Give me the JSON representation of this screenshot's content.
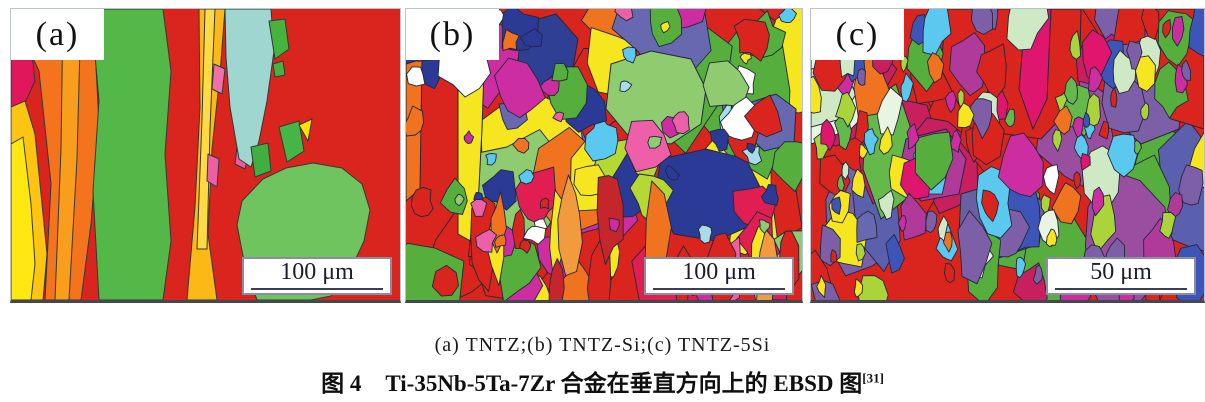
{
  "figure": {
    "panels": [
      {
        "label": "(a)",
        "scale_text": "100 μm"
      },
      {
        "label": "(b)",
        "scale_text": "100 μm"
      },
      {
        "label": "(c)",
        "scale_text": "50 μm"
      }
    ],
    "caption_line1": "(a) TNTZ;(b) TNTZ-Si;(c) TNTZ-5Si",
    "caption_fig_no": "图 4",
    "caption_title": "Ti-35Nb-5Ta-7Zr 合金在垂直方向上的 EBSD 图",
    "caption_ref": "[31]",
    "palette": {
      "red": "#d9251d",
      "crimson": "#e0175b",
      "green": "#53b848",
      "light_green": "#8fcc70",
      "lime": "#b5d832",
      "yellow": "#f5e620",
      "orange": "#f4731d",
      "navy": "#2b3a96",
      "purple": "#7d5fa8",
      "magenta": "#cc2da0",
      "cyan": "#9fd6cf"
    }
  }
}
